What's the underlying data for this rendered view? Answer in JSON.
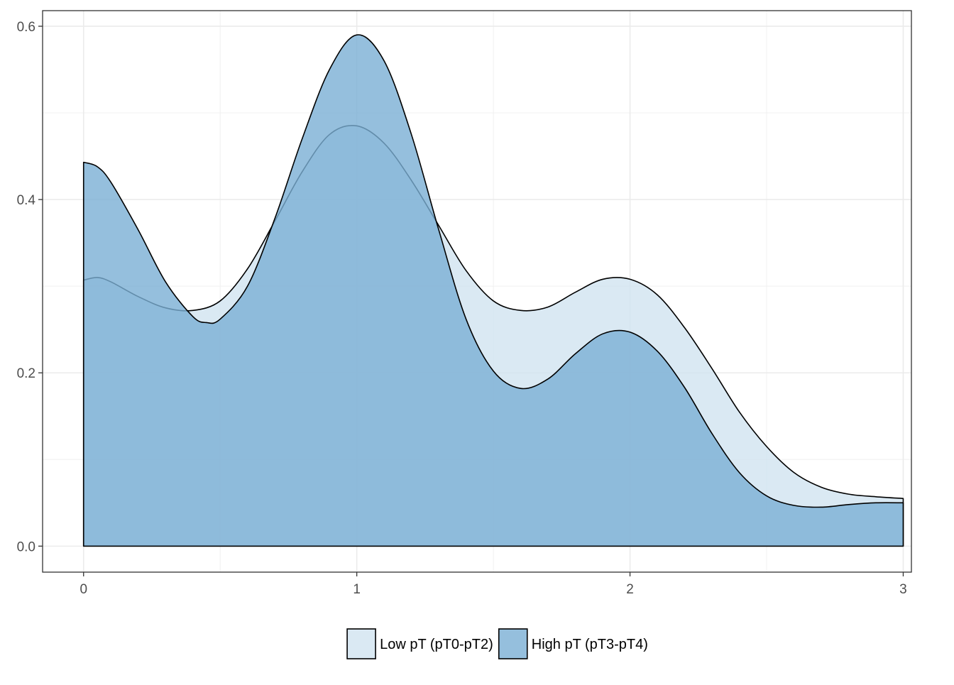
{
  "chart_data": {
    "type": "area",
    "subtype": "density",
    "title": "",
    "xlabel": "",
    "ylabel": "",
    "xlim": [
      -0.15,
      3.03
    ],
    "ylim": [
      -0.03,
      0.618
    ],
    "x_ticks": [
      0,
      1,
      2,
      3
    ],
    "x_tick_labels": [
      "0",
      "1",
      "2",
      "3"
    ],
    "y_ticks": [
      0.0,
      0.2,
      0.4,
      0.6
    ],
    "y_tick_labels": [
      "0.0",
      "0.2",
      "0.4",
      "0.6"
    ],
    "grid": true,
    "legend": {
      "position": "bottom"
    },
    "series": [
      {
        "name": "Low pT (pT0-pT2)",
        "color": "#d1e4f0",
        "x": [
          0,
          0.05,
          0.1,
          0.2,
          0.3,
          0.4,
          0.5,
          0.6,
          0.7,
          0.8,
          0.9,
          1.0,
          1.1,
          1.2,
          1.3,
          1.4,
          1.5,
          1.6,
          1.7,
          1.8,
          1.9,
          2.0,
          2.1,
          2.2,
          2.3,
          2.4,
          2.5,
          2.6,
          2.7,
          2.8,
          2.9,
          3.0
        ],
        "y": [
          0.307,
          0.31,
          0.305,
          0.288,
          0.275,
          0.272,
          0.283,
          0.32,
          0.375,
          0.432,
          0.475,
          0.485,
          0.465,
          0.422,
          0.37,
          0.318,
          0.283,
          0.272,
          0.276,
          0.293,
          0.308,
          0.308,
          0.29,
          0.252,
          0.205,
          0.155,
          0.115,
          0.085,
          0.068,
          0.06,
          0.057,
          0.055
        ]
      },
      {
        "name": "High pT (pT3-pT4)",
        "color": "#7bafd4",
        "x": [
          0,
          0.05,
          0.1,
          0.2,
          0.3,
          0.4,
          0.45,
          0.5,
          0.6,
          0.7,
          0.8,
          0.9,
          1.0,
          1.1,
          1.2,
          1.3,
          1.4,
          1.5,
          1.6,
          1.7,
          1.8,
          1.9,
          2.0,
          2.1,
          2.2,
          2.3,
          2.4,
          2.5,
          2.6,
          2.7,
          2.8,
          2.9,
          3.0
        ],
        "y": [
          0.443,
          0.438,
          0.42,
          0.365,
          0.305,
          0.265,
          0.258,
          0.262,
          0.3,
          0.378,
          0.47,
          0.55,
          0.59,
          0.56,
          0.475,
          0.365,
          0.262,
          0.202,
          0.182,
          0.193,
          0.222,
          0.245,
          0.247,
          0.225,
          0.183,
          0.13,
          0.085,
          0.058,
          0.047,
          0.045,
          0.048,
          0.05,
          0.05
        ]
      }
    ]
  }
}
